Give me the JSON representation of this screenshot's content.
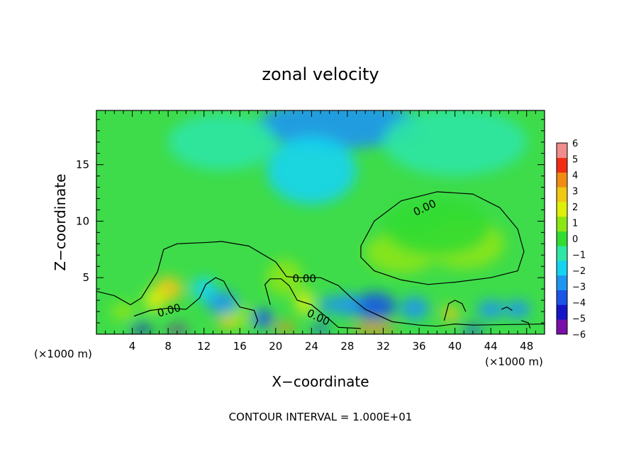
{
  "chart_data": {
    "type": "heatmap",
    "title": "zonal velocity",
    "xlabel": "X−coordinate",
    "ylabel": "Z−coordinate",
    "x_unit_label": "(×1000 m)",
    "x_unit_label_right": "(×1000 m)",
    "footer": "CONTOUR INTERVAL = 1.000E+01",
    "xlim": [
      0,
      50
    ],
    "ylim": [
      0,
      19.8
    ],
    "x_ticks": [
      4,
      8,
      12,
      16,
      20,
      24,
      28,
      32,
      36,
      40,
      44,
      48
    ],
    "x_tick_labels": [
      "4",
      "8",
      "12",
      "16",
      "20",
      "24",
      "28",
      "32",
      "36",
      "40",
      "44",
      "48"
    ],
    "y_ticks": [
      5,
      10,
      15
    ],
    "y_tick_labels": [
      "5",
      "10",
      "15"
    ],
    "colorbar": {
      "min": -6,
      "max": 6,
      "tick_values": [
        6,
        5,
        4,
        3,
        2,
        1,
        0,
        -1,
        -2,
        -3,
        -4,
        -5,
        -6
      ],
      "tick_labels": [
        "6",
        "5",
        "4",
        "3",
        "2",
        "1",
        "0",
        "−1",
        "−2",
        "−3",
        "−4",
        "−5",
        "−6"
      ],
      "colors": [
        "#7a0fa8",
        "#1515c8",
        "#1a55e6",
        "#1e96f0",
        "#14d4f0",
        "#2ee6a5",
        "#32dc32",
        "#8ce614",
        "#dcf00a",
        "#f0c814",
        "#f08c14",
        "#f02d14",
        "#f08c8c"
      ]
    },
    "contour_level": 0,
    "contour_labels": [
      "0.00",
      "0.00",
      "0.00",
      "0.00"
    ],
    "field_features": [
      {
        "kind": "background",
        "value": 0.2
      },
      {
        "kind": "negative_region",
        "x": 27,
        "z": 18.5,
        "value": -2.0
      },
      {
        "kind": "negative_region",
        "x": 25,
        "z": 14.5,
        "value": -1.2
      },
      {
        "kind": "positive_region",
        "x": 34,
        "z": 7.2,
        "value": 1.5
      },
      {
        "kind": "positive_region",
        "x": 41,
        "z": 8.2,
        "value": 1.3
      },
      {
        "kind": "positive_region",
        "x": 8,
        "z": 3.6,
        "value": 3.2
      },
      {
        "kind": "positive_region",
        "x": 23,
        "z": 2.8,
        "value": 2.6
      },
      {
        "kind": "negative_region",
        "x": 31,
        "z": 2.5,
        "value": -3.5
      },
      {
        "kind": "negative_region",
        "x": 14,
        "z": 2.8,
        "value": -3.0
      },
      {
        "kind": "positive_region",
        "x": 39.5,
        "z": 1.8,
        "value": 3.5
      },
      {
        "kind": "positive_region",
        "x": 31,
        "z": 0.5,
        "value": 4.0
      }
    ]
  }
}
